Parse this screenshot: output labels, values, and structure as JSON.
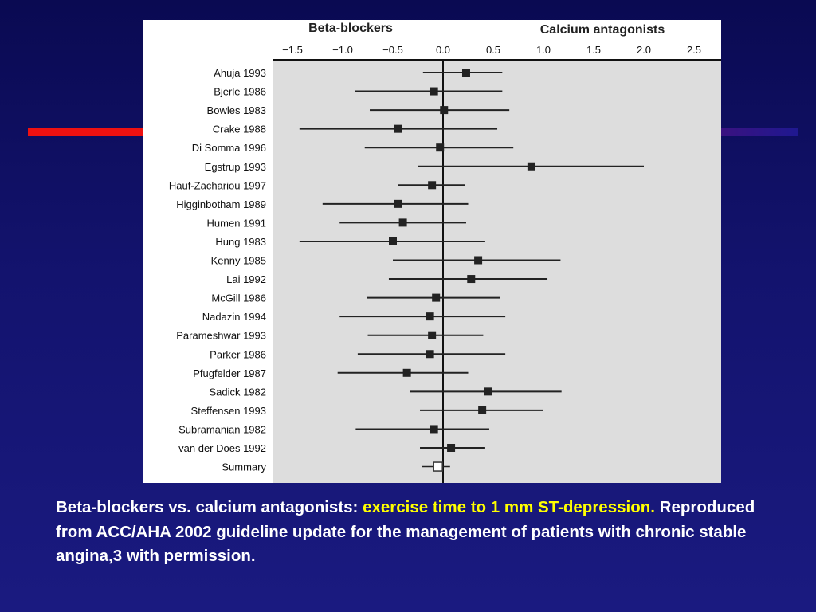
{
  "colors": {
    "background": "#13136e",
    "accent_red": "#ee1111",
    "highlight": "#ffff00",
    "plot_bg": "#dddddd"
  },
  "chart_data": {
    "type": "forest-plot",
    "header_left": "Beta-blockers",
    "header_right": "Calcium antagonists",
    "xlim": [
      -1.6,
      2.6
    ],
    "xticks": [
      "-1.5",
      "-1.0",
      "-0.5",
      "0.0",
      "0.5",
      "1.0",
      "1.5",
      "2.0",
      "2.5"
    ],
    "studies": [
      {
        "name": "Ahuja 1993",
        "est": 0.23,
        "lo": -0.2,
        "hi": 0.59
      },
      {
        "name": "Bjerle 1986",
        "est": -0.09,
        "lo": -0.88,
        "hi": 0.59
      },
      {
        "name": "Bowles 1983",
        "est": 0.01,
        "lo": -0.73,
        "hi": 0.66
      },
      {
        "name": "Crake 1988",
        "est": -0.45,
        "lo": -1.43,
        "hi": 0.54
      },
      {
        "name": "Di Somma 1996",
        "est": -0.03,
        "lo": -0.78,
        "hi": 0.7
      },
      {
        "name": "Egstrup 1993",
        "est": 0.88,
        "lo": -0.25,
        "hi": 2.0
      },
      {
        "name": "Hauf-Zachariou 1997",
        "est": -0.11,
        "lo": -0.45,
        "hi": 0.22
      },
      {
        "name": "Higginbotham 1989",
        "est": -0.45,
        "lo": -1.2,
        "hi": 0.25
      },
      {
        "name": "Humen 1991",
        "est": -0.4,
        "lo": -1.03,
        "hi": 0.23
      },
      {
        "name": "Hung 1983",
        "est": -0.5,
        "lo": -1.43,
        "hi": 0.42
      },
      {
        "name": "Kenny 1985",
        "est": 0.35,
        "lo": -0.5,
        "hi": 1.17
      },
      {
        "name": "Lai 1992",
        "est": 0.28,
        "lo": -0.54,
        "hi": 1.04
      },
      {
        "name": "McGill 1986",
        "est": -0.07,
        "lo": -0.76,
        "hi": 0.57
      },
      {
        "name": "Nadazin 1994",
        "est": -0.13,
        "lo": -1.03,
        "hi": 0.62
      },
      {
        "name": "Parameshwar 1993",
        "est": -0.11,
        "lo": -0.75,
        "hi": 0.4
      },
      {
        "name": "Parker 1986",
        "est": -0.13,
        "lo": -0.85,
        "hi": 0.62
      },
      {
        "name": "Pfugfelder 1987",
        "est": -0.36,
        "lo": -1.05,
        "hi": 0.25
      },
      {
        "name": "Sadick 1982",
        "est": 0.45,
        "lo": -0.33,
        "hi": 1.18
      },
      {
        "name": "Steffensen 1993",
        "est": 0.39,
        "lo": -0.23,
        "hi": 1.0
      },
      {
        "name": "Subramanian 1982",
        "est": -0.09,
        "lo": -0.87,
        "hi": 0.46
      },
      {
        "name": "van der Does 1992",
        "est": 0.08,
        "lo": -0.23,
        "hi": 0.42
      },
      {
        "name": "Summary",
        "est": -0.05,
        "lo": -0.21,
        "hi": 0.07,
        "summary": true
      }
    ]
  },
  "caption": {
    "part1": "Beta-blockers vs. calcium antagonists: ",
    "highlight": "exercise time to 1 mm ST-depression.",
    "part2": " Reproduced from ACC/AHA 2002 guideline update for the management of patients with chronic stable angina,3 with permission."
  }
}
